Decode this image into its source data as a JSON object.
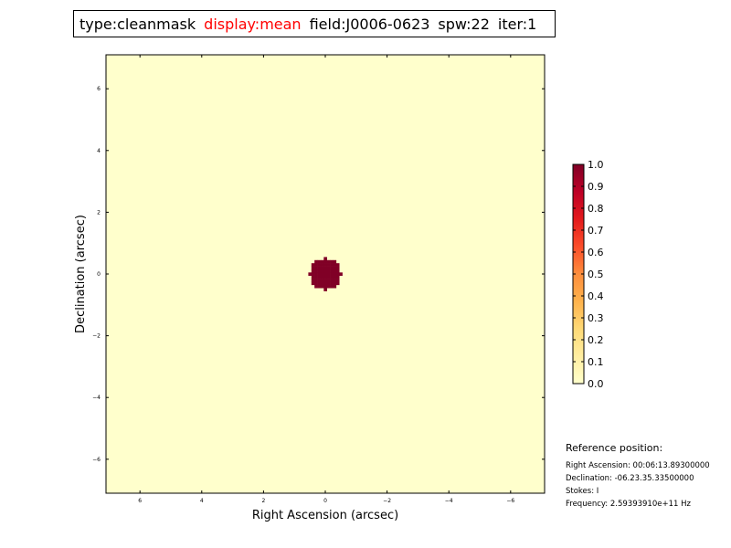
{
  "title_parts": {
    "type": "type:cleanmask",
    "display": "display:mean",
    "field": "field:J0006-0623",
    "spw": "spw:22",
    "iter": "iter:1"
  },
  "colors": {
    "title_highlight": "#ff0000",
    "background_value": "#ffffcc",
    "mask_value": "#800026"
  },
  "chart_data": {
    "type": "heatmap",
    "xlabel": "Right Ascension (arcsec)",
    "ylabel": "Declination (arcsec)",
    "xlim": [
      7.1,
      -7.1
    ],
    "ylim": [
      -7.1,
      7.1
    ],
    "x_ticks": [
      6,
      4,
      2,
      0,
      -2,
      -4,
      -6
    ],
    "x_tick_labels": [
      "6",
      "4",
      "2",
      "0",
      "−2",
      "−4",
      "−6"
    ],
    "y_ticks": [
      6,
      4,
      2,
      0,
      -2,
      -4,
      -6
    ],
    "y_tick_labels": [
      "6",
      "4",
      "2",
      "0",
      "−2",
      "−4",
      "−6"
    ],
    "grid": false,
    "background_value": 0.0,
    "mask_region": {
      "value": 1.0,
      "center": [
        0.0,
        0.0
      ],
      "radius_arcsec": 0.5
    },
    "colorbar": {
      "range": [
        0.0,
        1.0
      ],
      "ticks": [
        "0.0",
        "0.1",
        "0.2",
        "0.3",
        "0.4",
        "0.5",
        "0.6",
        "0.7",
        "0.8",
        "0.9",
        "1.0"
      ],
      "colormap": "YlOrRd",
      "colormap_stops": [
        "#ffffcc",
        "#ffeda0",
        "#fed976",
        "#feb24c",
        "#fd8d3c",
        "#fc4e2a",
        "#e31a1c",
        "#bd0026",
        "#800026"
      ]
    }
  },
  "reference": {
    "heading": "Reference position:",
    "ra": "Right Ascension: 00:06:13.89300000",
    "dec": "Declination: -06.23.35.33500000",
    "stokes": "Stokes: I",
    "frequency": "Frequency: 2.59393910e+11 Hz"
  }
}
